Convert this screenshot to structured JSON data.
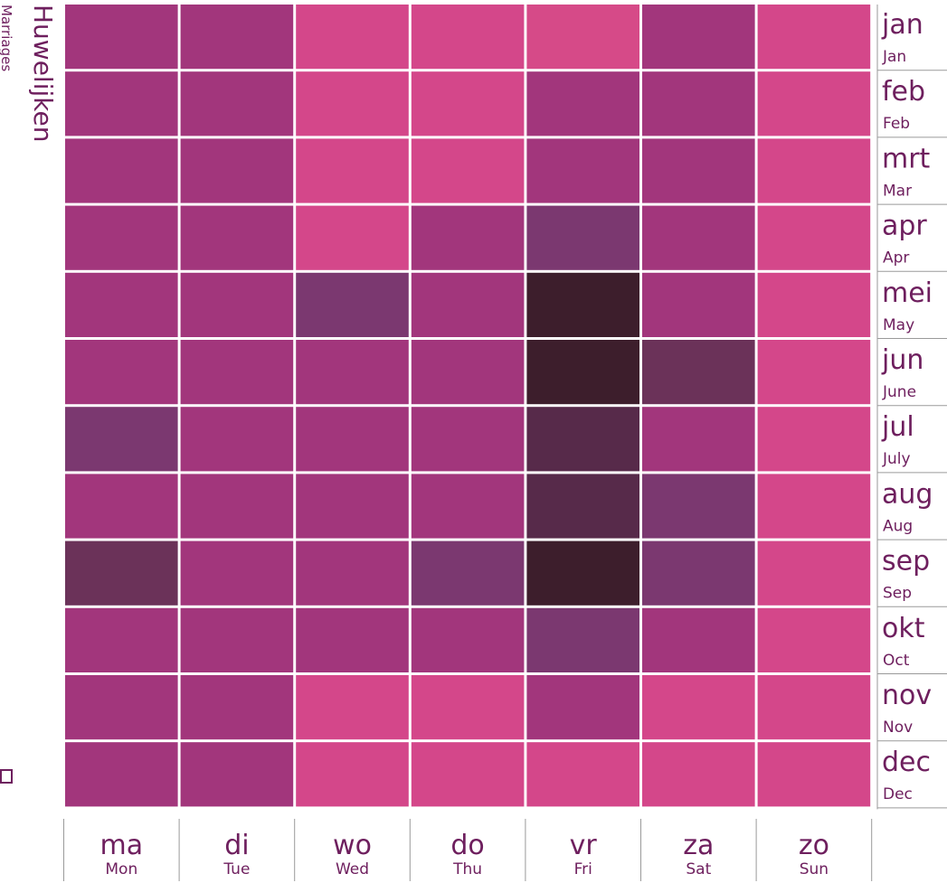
{
  "chart_data": {
    "type": "heatmap",
    "title": "Huwelijken",
    "subtitle": "Marriages",
    "rows": [
      {
        "label": "jan",
        "sublabel": "Jan"
      },
      {
        "label": "feb",
        "sublabel": "Feb"
      },
      {
        "label": "mrt",
        "sublabel": "Mar"
      },
      {
        "label": "apr",
        "sublabel": "Apr"
      },
      {
        "label": "mei",
        "sublabel": "May"
      },
      {
        "label": "jun",
        "sublabel": "June"
      },
      {
        "label": "jul",
        "sublabel": "July"
      },
      {
        "label": "aug",
        "sublabel": "Aug"
      },
      {
        "label": "sep",
        "sublabel": "Sep"
      },
      {
        "label": "okt",
        "sublabel": "Oct"
      },
      {
        "label": "nov",
        "sublabel": "Nov"
      },
      {
        "label": "dec",
        "sublabel": "Dec"
      }
    ],
    "columns": [
      {
        "label": "ma",
        "sublabel": "Mon"
      },
      {
        "label": "di",
        "sublabel": "Tue"
      },
      {
        "label": "wo",
        "sublabel": "Wed"
      },
      {
        "label": "do",
        "sublabel": "Thu"
      },
      {
        "label": "vr",
        "sublabel": "Fri"
      },
      {
        "label": "za",
        "sublabel": "Sat"
      },
      {
        "label": "zo",
        "sublabel": "Sun"
      }
    ],
    "colors": [
      [
        "#a2367c",
        "#a2367c",
        "#d4478a",
        "#d4478a",
        "#d64a88",
        "#a2367c",
        "#d4478a"
      ],
      [
        "#a2367c",
        "#a2367c",
        "#d4478a",
        "#d4478a",
        "#a2367c",
        "#a2367c",
        "#d4478a"
      ],
      [
        "#a2367c",
        "#a2367c",
        "#d4478a",
        "#d4478a",
        "#a2367c",
        "#a2367c",
        "#d4478a"
      ],
      [
        "#a2367c",
        "#a2367c",
        "#d4478a",
        "#a2367c",
        "#7b3870",
        "#a2367c",
        "#d4478a"
      ],
      [
        "#a2367c",
        "#a2367c",
        "#7b3870",
        "#a2367c",
        "#3d1e2c",
        "#a2367c",
        "#d4478a"
      ],
      [
        "#a2367c",
        "#a2367c",
        "#a2367c",
        "#a2367c",
        "#3d1e2c",
        "#6b3259",
        "#d4478a"
      ],
      [
        "#7b3870",
        "#a2367c",
        "#a2367c",
        "#a2367c",
        "#572a4a",
        "#a2367c",
        "#d4478a"
      ],
      [
        "#a2367c",
        "#a2367c",
        "#a2367c",
        "#a2367c",
        "#572a4a",
        "#7b3870",
        "#d4478a"
      ],
      [
        "#6b3259",
        "#a2367c",
        "#a2367c",
        "#7b3870",
        "#3d1e2c",
        "#7b3870",
        "#d4478a"
      ],
      [
        "#a2367c",
        "#a2367c",
        "#a2367c",
        "#a2367c",
        "#7b3870",
        "#a2367c",
        "#d4478a"
      ],
      [
        "#a2367c",
        "#a2367c",
        "#d4478a",
        "#d4478a",
        "#a2367c",
        "#d4478a",
        "#d4478a"
      ],
      [
        "#a2367c",
        "#a2367c",
        "#d4478a",
        "#d4478a",
        "#d4478a",
        "#d4478a",
        "#d4478a"
      ]
    ]
  }
}
